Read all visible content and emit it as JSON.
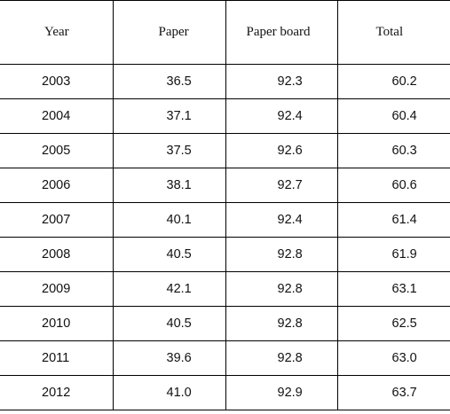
{
  "table": {
    "headers": [
      "Year",
      "Paper",
      "Paper board",
      "Total"
    ],
    "rows": [
      {
        "year": "2003",
        "paper": "36.5",
        "paper_board": "92.3",
        "total": "60.2"
      },
      {
        "year": "2004",
        "paper": "37.1",
        "paper_board": "92.4",
        "total": "60.4"
      },
      {
        "year": "2005",
        "paper": "37.5",
        "paper_board": "92.6",
        "total": "60.3"
      },
      {
        "year": "2006",
        "paper": "38.1",
        "paper_board": "92.7",
        "total": "60.6"
      },
      {
        "year": "2007",
        "paper": "40.1",
        "paper_board": "92.4",
        "total": "61.4"
      },
      {
        "year": "2008",
        "paper": "40.5",
        "paper_board": "92.8",
        "total": "61.9"
      },
      {
        "year": "2009",
        "paper": "42.1",
        "paper_board": "92.8",
        "total": "63.1"
      },
      {
        "year": "2010",
        "paper": "40.5",
        "paper_board": "92.8",
        "total": "62.5"
      },
      {
        "year": "2011",
        "paper": "39.6",
        "paper_board": "92.8",
        "total": "63.0"
      },
      {
        "year": "2012",
        "paper": "41.0",
        "paper_board": "92.9",
        "total": "63.7"
      }
    ]
  }
}
